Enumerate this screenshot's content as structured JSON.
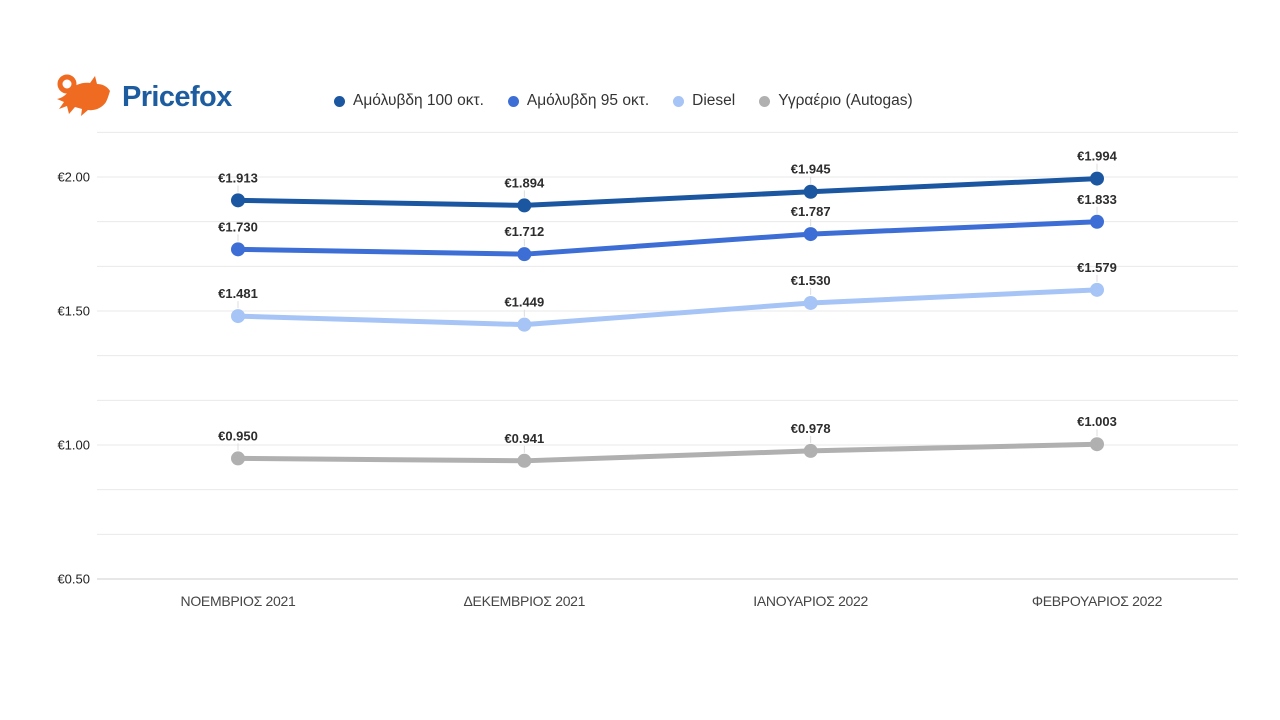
{
  "brand": {
    "name": "Pricefox"
  },
  "colors": {
    "brand_orange": "#EF6B21",
    "brand_blue": "#1D5C9F",
    "grid": "#E9E9E9",
    "axis_line": "#CFCFCF",
    "tick_label": "#222222",
    "x_label": "#454545",
    "data_label": "#2D2D2D",
    "legend_text": "#333333",
    "connector": "#DDDDDD",
    "background": "#FFFFFF"
  },
  "chart_data": {
    "type": "line",
    "title": "",
    "categories": [
      "ΝΟΕΜΒΡΙΟΣ 2021",
      "ΔΕΚΕΜΒΡΙΟΣ 2021",
      "ΙΑΝΟΥΑΡΙΟΣ 2022",
      "ΦΕΒΡΟΥΑΡΙΟΣ 2022"
    ],
    "series": [
      {
        "name": "Αμόλυβδη 100 οκτ.",
        "color": "#1B56A0",
        "values": [
          1.913,
          1.894,
          1.945,
          1.994
        ],
        "point_labels": [
          "€1.913",
          "€1.894",
          "€1.945",
          "€1.994"
        ]
      },
      {
        "name": "Αμόλυβδη 95 οκτ.",
        "color": "#3D6ED5",
        "values": [
          1.73,
          1.712,
          1.787,
          1.833
        ],
        "point_labels": [
          "€1.730",
          "€1.712",
          "€1.787",
          "€1.833"
        ]
      },
      {
        "name": "Diesel",
        "color": "#A6C4F5",
        "values": [
          1.481,
          1.449,
          1.53,
          1.579
        ],
        "point_labels": [
          "€1.481",
          "€1.449",
          "€1.530",
          "€1.579"
        ]
      },
      {
        "name": "Υγραέριο (Autogas)",
        "color": "#B0B0B0",
        "values": [
          0.95,
          0.941,
          0.978,
          1.003
        ],
        "point_labels": [
          "€0.950",
          "€0.941",
          "€0.978",
          "€1.003"
        ]
      }
    ],
    "y_axis": {
      "ticks": [
        2.0,
        1.5,
        1.0,
        0.5
      ],
      "tick_labels": [
        "€2.00",
        "€1.50",
        "€1.00",
        "€0.50"
      ],
      "range_bottom": 0.5,
      "range_top": 2.1667,
      "minor_grid_divisions": 10
    },
    "grid": true,
    "legend_position": "top"
  }
}
